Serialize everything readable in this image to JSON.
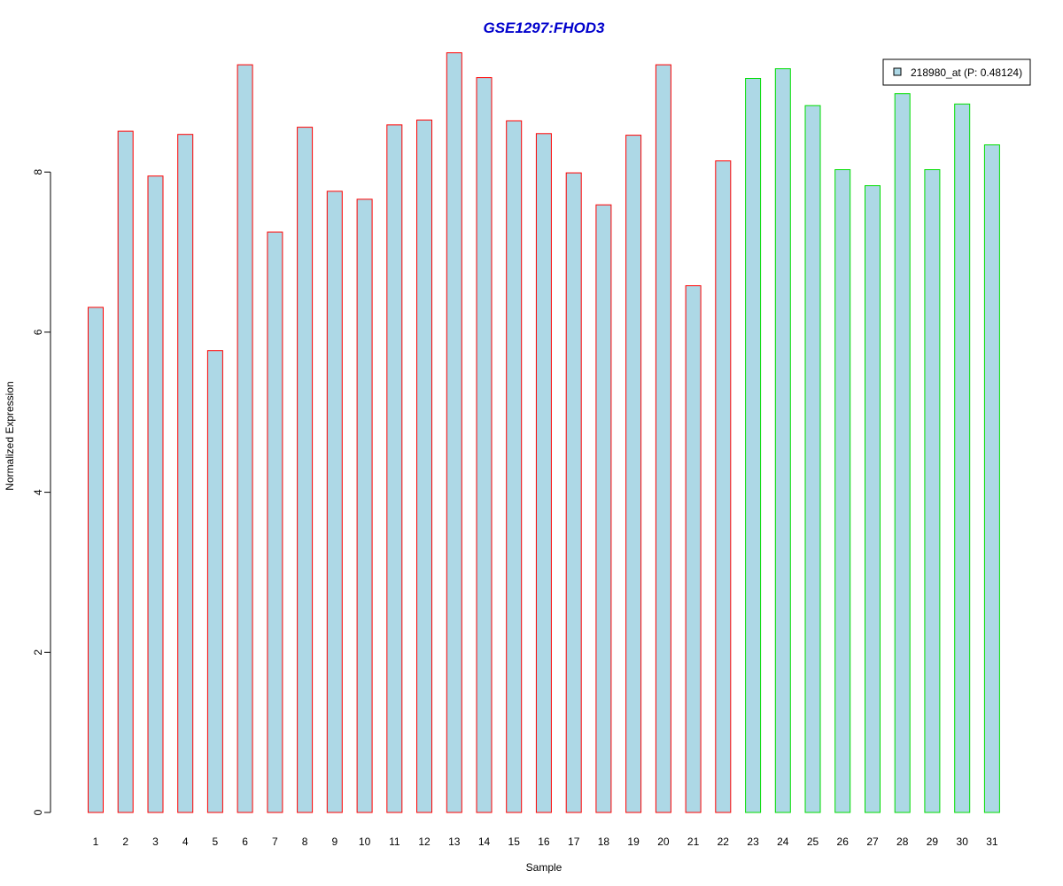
{
  "chart_data": {
    "type": "bar",
    "title": "GSE1297:FHOD3",
    "xlabel": "Sample",
    "ylabel": "Normalized Expression",
    "categories": [
      "1",
      "2",
      "3",
      "4",
      "5",
      "6",
      "7",
      "8",
      "9",
      "10",
      "11",
      "12",
      "13",
      "14",
      "15",
      "16",
      "17",
      "18",
      "19",
      "20",
      "21",
      "22",
      "23",
      "24",
      "25",
      "26",
      "27",
      "28",
      "29",
      "30",
      "31"
    ],
    "values": [
      6.31,
      8.51,
      7.95,
      8.47,
      5.77,
      9.34,
      7.25,
      8.56,
      7.76,
      7.66,
      8.59,
      8.65,
      9.49,
      9.18,
      8.64,
      8.48,
      7.99,
      7.59,
      8.46,
      9.34,
      6.58,
      8.14,
      9.17,
      9.29,
      8.83,
      8.03,
      7.83,
      8.98,
      8.03,
      8.85,
      8.34
    ],
    "groups": [
      1,
      1,
      1,
      1,
      1,
      1,
      1,
      1,
      1,
      1,
      1,
      1,
      1,
      1,
      1,
      1,
      1,
      1,
      1,
      1,
      1,
      1,
      2,
      2,
      2,
      2,
      2,
      2,
      2,
      2,
      2
    ],
    "ylim": [
      0,
      9.5
    ],
    "yticks": [
      "0",
      "2",
      "4",
      "6",
      "8"
    ],
    "grid": false,
    "legend": {
      "position": "top-right",
      "entries": [
        "218980_at (P: 0.48124)"
      ]
    },
    "colors": {
      "title": "#0000CC",
      "bar_fill": "#ADD8E6",
      "group1_border": "#FF0000",
      "group2_border": "#00DD00",
      "axis": "#000000"
    }
  }
}
